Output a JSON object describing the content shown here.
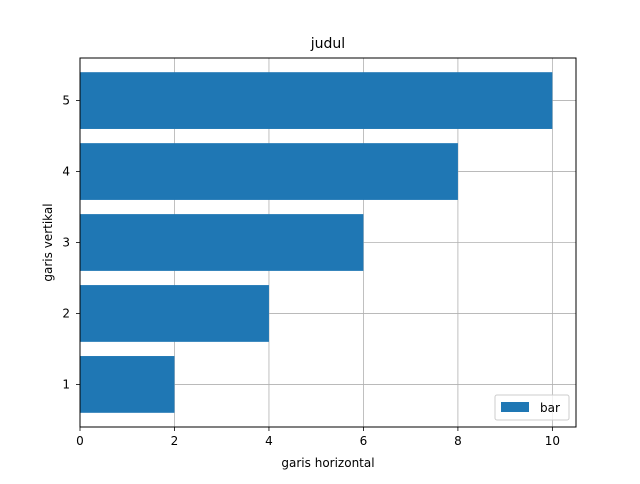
{
  "chart_data": {
    "type": "bar",
    "orientation": "horizontal",
    "title": "judul",
    "xlabel": "garis horizontal",
    "ylabel": "garis vertikal",
    "categories": [
      "1",
      "2",
      "3",
      "4",
      "5"
    ],
    "series": [
      {
        "name": "bar",
        "values": [
          2,
          4,
          6,
          8,
          10
        ],
        "color": "#1f77b4"
      }
    ],
    "xlim": [
      0,
      10.5
    ],
    "ylim": [
      0.4,
      5.6
    ],
    "xticks": [
      "0",
      "2",
      "4",
      "6",
      "8",
      "10"
    ],
    "grid": true,
    "legend_position": "lower-right"
  }
}
